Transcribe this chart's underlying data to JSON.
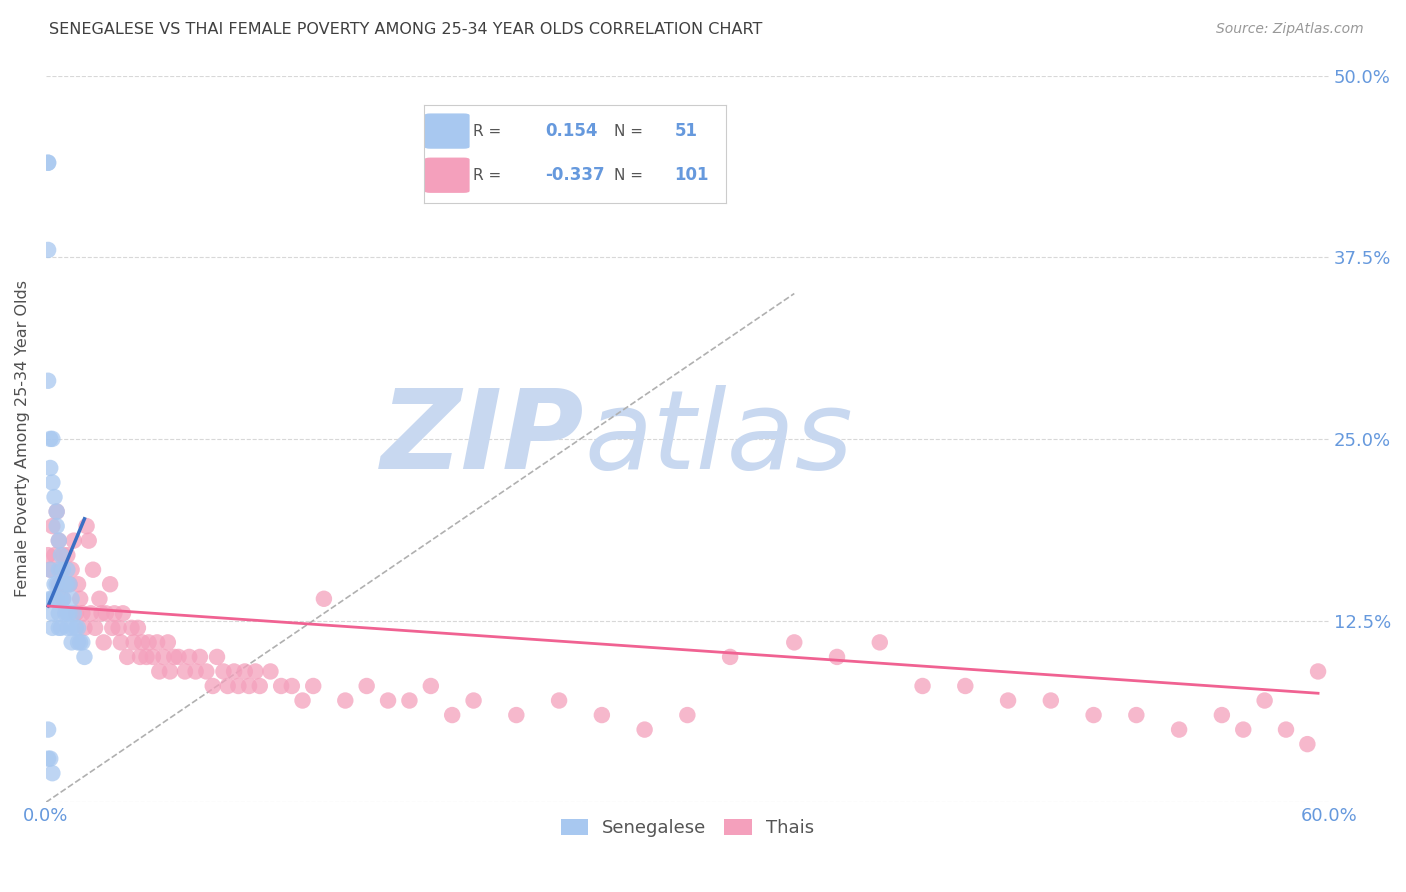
{
  "title": "SENEGALESE VS THAI FEMALE POVERTY AMONG 25-34 YEAR OLDS CORRELATION CHART",
  "source": "Source: ZipAtlas.com",
  "ylabel": "Female Poverty Among 25-34 Year Olds",
  "xlim": [
    0.0,
    0.6
  ],
  "ylim": [
    0.0,
    0.5
  ],
  "legend_R_blue": "0.154",
  "legend_N_blue": "51",
  "legend_R_pink": "-0.337",
  "legend_N_pink": "101",
  "blue_color": "#a8c8f0",
  "pink_color": "#f4a0bc",
  "blue_line_color": "#3a6fc4",
  "pink_line_color": "#f06292",
  "diagonal_color": "#b0b0b0",
  "grid_color": "#d8d8d8",
  "title_color": "#404040",
  "axis_tick_color": "#6699dd",
  "watermark_zip_color": "#c8d8f0",
  "watermark_atlas_color": "#c8d8f0",
  "senegalese_x": [
    0.001,
    0.001,
    0.001,
    0.001,
    0.001,
    0.002,
    0.002,
    0.002,
    0.002,
    0.003,
    0.003,
    0.003,
    0.003,
    0.004,
    0.004,
    0.004,
    0.005,
    0.005,
    0.005,
    0.005,
    0.006,
    0.006,
    0.006,
    0.006,
    0.007,
    0.007,
    0.007,
    0.008,
    0.008,
    0.009,
    0.009,
    0.01,
    0.01,
    0.01,
    0.01,
    0.011,
    0.011,
    0.012,
    0.012,
    0.013,
    0.014,
    0.015,
    0.015,
    0.016,
    0.017,
    0.018,
    0.002,
    0.003,
    0.003,
    0.012,
    0.001
  ],
  "senegalese_y": [
    0.44,
    0.44,
    0.38,
    0.29,
    0.05,
    0.25,
    0.23,
    0.16,
    0.03,
    0.25,
    0.22,
    0.14,
    0.02,
    0.21,
    0.15,
    0.14,
    0.2,
    0.19,
    0.15,
    0.14,
    0.18,
    0.16,
    0.13,
    0.12,
    0.17,
    0.14,
    0.12,
    0.16,
    0.14,
    0.15,
    0.13,
    0.16,
    0.15,
    0.13,
    0.12,
    0.15,
    0.13,
    0.14,
    0.12,
    0.13,
    0.12,
    0.12,
    0.11,
    0.11,
    0.11,
    0.1,
    0.14,
    0.13,
    0.12,
    0.11,
    0.03
  ],
  "thai_x": [
    0.001,
    0.002,
    0.003,
    0.004,
    0.005,
    0.006,
    0.006,
    0.007,
    0.008,
    0.008,
    0.009,
    0.01,
    0.011,
    0.012,
    0.013,
    0.014,
    0.015,
    0.016,
    0.017,
    0.018,
    0.019,
    0.02,
    0.021,
    0.022,
    0.023,
    0.025,
    0.026,
    0.027,
    0.028,
    0.03,
    0.031,
    0.032,
    0.034,
    0.035,
    0.036,
    0.038,
    0.04,
    0.041,
    0.043,
    0.044,
    0.045,
    0.047,
    0.048,
    0.05,
    0.052,
    0.053,
    0.055,
    0.057,
    0.058,
    0.06,
    0.062,
    0.065,
    0.067,
    0.07,
    0.072,
    0.075,
    0.078,
    0.08,
    0.083,
    0.085,
    0.088,
    0.09,
    0.093,
    0.095,
    0.098,
    0.1,
    0.105,
    0.11,
    0.115,
    0.12,
    0.125,
    0.13,
    0.14,
    0.15,
    0.16,
    0.17,
    0.18,
    0.19,
    0.2,
    0.22,
    0.24,
    0.26,
    0.28,
    0.3,
    0.32,
    0.35,
    0.37,
    0.39,
    0.41,
    0.43,
    0.45,
    0.47,
    0.49,
    0.51,
    0.53,
    0.55,
    0.56,
    0.57,
    0.58,
    0.59,
    0.595
  ],
  "thai_y": [
    0.17,
    0.16,
    0.19,
    0.17,
    0.2,
    0.18,
    0.15,
    0.16,
    0.17,
    0.14,
    0.15,
    0.17,
    0.15,
    0.16,
    0.18,
    0.13,
    0.15,
    0.14,
    0.13,
    0.12,
    0.19,
    0.18,
    0.13,
    0.16,
    0.12,
    0.14,
    0.13,
    0.11,
    0.13,
    0.15,
    0.12,
    0.13,
    0.12,
    0.11,
    0.13,
    0.1,
    0.12,
    0.11,
    0.12,
    0.1,
    0.11,
    0.1,
    0.11,
    0.1,
    0.11,
    0.09,
    0.1,
    0.11,
    0.09,
    0.1,
    0.1,
    0.09,
    0.1,
    0.09,
    0.1,
    0.09,
    0.08,
    0.1,
    0.09,
    0.08,
    0.09,
    0.08,
    0.09,
    0.08,
    0.09,
    0.08,
    0.09,
    0.08,
    0.08,
    0.07,
    0.08,
    0.14,
    0.07,
    0.08,
    0.07,
    0.07,
    0.08,
    0.06,
    0.07,
    0.06,
    0.07,
    0.06,
    0.05,
    0.06,
    0.1,
    0.11,
    0.1,
    0.11,
    0.08,
    0.08,
    0.07,
    0.07,
    0.06,
    0.06,
    0.05,
    0.06,
    0.05,
    0.07,
    0.05,
    0.04,
    0.09
  ],
  "blue_trend_x": [
    0.001,
    0.018
  ],
  "blue_trend_y": [
    0.135,
    0.195
  ],
  "pink_trend_x": [
    0.001,
    0.595
  ],
  "pink_trend_y": [
    0.135,
    0.075
  ]
}
